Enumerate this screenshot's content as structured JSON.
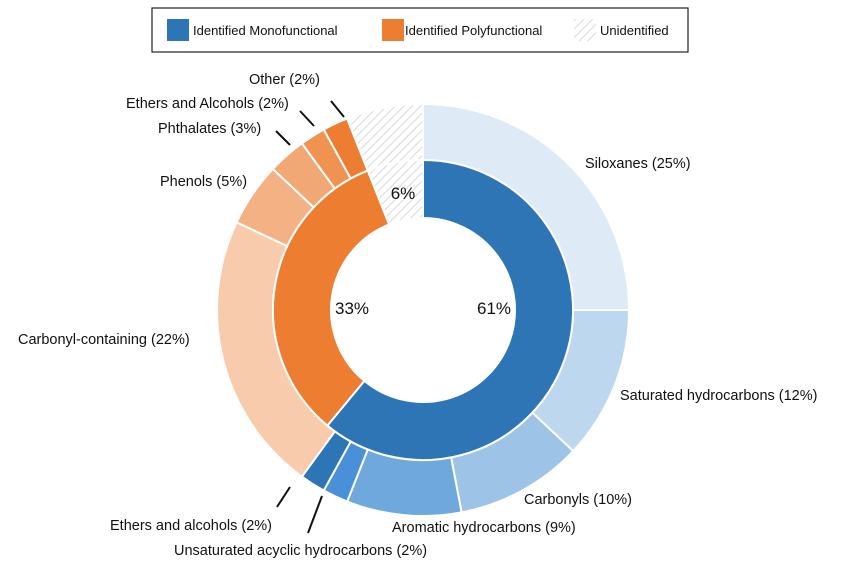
{
  "chart_data": {
    "type": "pie",
    "subtype": "nested-donut",
    "legend": {
      "placement": "top",
      "entries": [
        {
          "label": "Identified Monofunctional",
          "color": "#2E75B6"
        },
        {
          "label": "Identified Polyfunctional",
          "color": "#ED7D31"
        },
        {
          "label": "Unidentified",
          "color": "hatched-light-gray"
        }
      ]
    },
    "inner_ring": [
      {
        "category": "Identified Monofunctional",
        "value": 61,
        "label": "61%",
        "color": "#2E75B6"
      },
      {
        "category": "Identified Polyfunctional",
        "value": 33,
        "label": "33%",
        "color": "#ED7D31"
      },
      {
        "category": "Unidentified",
        "value": 6,
        "label": "6%",
        "color": "hatched-light-gray"
      }
    ],
    "outer_ring": [
      {
        "label": "Siloxanes (25%)",
        "value": 25,
        "group": "Identified Monofunctional",
        "color": "#DEEBF7"
      },
      {
        "label": "Saturated hydrocarbons (12%)",
        "value": 12,
        "group": "Identified Monofunctional",
        "color": "#BDD7EE"
      },
      {
        "label": "Carbonyls (10%)",
        "value": 10,
        "group": "Identified Monofunctional",
        "color": "#9DC3E6"
      },
      {
        "label": "Aromatic hydrocarbons (9%)",
        "value": 9,
        "group": "Identified Monofunctional",
        "color": "#6FA8DC"
      },
      {
        "label": "Unsaturated acyclic hydrocarbons (2%)",
        "value": 2,
        "group": "Identified Monofunctional",
        "color": "#4A90D9"
      },
      {
        "label": "Ethers and alcohols (2%)",
        "value": 2,
        "group": "Identified Monofunctional",
        "color": "#2E75B6"
      },
      {
        "label": "Carbonyl-containing (22%)",
        "value": 22,
        "group": "Identified Polyfunctional",
        "color": "#F8CBAD"
      },
      {
        "label": "Phenols (5%)",
        "value": 5,
        "group": "Identified Polyfunctional",
        "color": "#F4B183"
      },
      {
        "label": "Phthalates (3%)",
        "value": 3,
        "group": "Identified Polyfunctional",
        "color": "#F2A874"
      },
      {
        "label": "Ethers and Alcohols (2%)",
        "value": 2,
        "group": "Identified Polyfunctional",
        "color": "#F09252"
      },
      {
        "label": "Other (2%)",
        "value": 2,
        "group": "Identified Polyfunctional",
        "color": "#ED7D31"
      },
      {
        "label": "",
        "value": 6,
        "group": "Unidentified",
        "color": "hatched-light-gray"
      }
    ]
  }
}
